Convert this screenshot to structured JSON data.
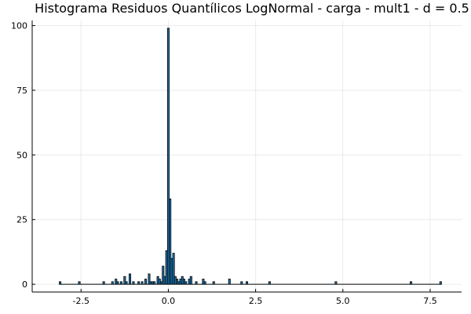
{
  "chart_data": {
    "type": "bar",
    "title": "Histograma Residuos Quantílicos LogNormal - carga - mult1 - d = 0.5",
    "xlabel": "",
    "ylabel": "",
    "xlim": [
      -3.9,
      8.4
    ],
    "ylim": [
      -3,
      102
    ],
    "xticks": [
      -2.5,
      0.0,
      2.5,
      5.0,
      7.5
    ],
    "xtick_labels": [
      "-2.5",
      "0.0",
      "2.5",
      "5.0",
      "7.5"
    ],
    "yticks": [
      0,
      25,
      50,
      75,
      100
    ],
    "ytick_labels": [
      "0",
      "25",
      "50",
      "75",
      "100"
    ],
    "grid": true,
    "legend": "none",
    "bar_color": "#1f77b4",
    "bin_width": 0.05,
    "bins": [
      {
        "x": -3.1,
        "count": 1
      },
      {
        "x": -2.55,
        "count": 1
      },
      {
        "x": -1.85,
        "count": 1
      },
      {
        "x": -1.6,
        "count": 1
      },
      {
        "x": -1.5,
        "count": 2
      },
      {
        "x": -1.45,
        "count": 1
      },
      {
        "x": -1.35,
        "count": 1
      },
      {
        "x": -1.25,
        "count": 3
      },
      {
        "x": -1.2,
        "count": 1
      },
      {
        "x": -1.1,
        "count": 4
      },
      {
        "x": -1.0,
        "count": 1
      },
      {
        "x": -0.85,
        "count": 1
      },
      {
        "x": -0.75,
        "count": 1
      },
      {
        "x": -0.65,
        "count": 2
      },
      {
        "x": -0.55,
        "count": 4
      },
      {
        "x": -0.5,
        "count": 1
      },
      {
        "x": -0.45,
        "count": 1
      },
      {
        "x": -0.4,
        "count": 1
      },
      {
        "x": -0.3,
        "count": 3
      },
      {
        "x": -0.25,
        "count": 2
      },
      {
        "x": -0.2,
        "count": 1
      },
      {
        "x": -0.15,
        "count": 7
      },
      {
        "x": -0.1,
        "count": 3
      },
      {
        "x": -0.05,
        "count": 13
      },
      {
        "x": 0.0,
        "count": 99
      },
      {
        "x": 0.05,
        "count": 33
      },
      {
        "x": 0.1,
        "count": 10
      },
      {
        "x": 0.15,
        "count": 12
      },
      {
        "x": 0.2,
        "count": 3
      },
      {
        "x": 0.25,
        "count": 2
      },
      {
        "x": 0.3,
        "count": 1
      },
      {
        "x": 0.35,
        "count": 2
      },
      {
        "x": 0.4,
        "count": 3
      },
      {
        "x": 0.45,
        "count": 2
      },
      {
        "x": 0.5,
        "count": 1
      },
      {
        "x": 0.6,
        "count": 2
      },
      {
        "x": 0.65,
        "count": 3
      },
      {
        "x": 0.8,
        "count": 1
      },
      {
        "x": 1.0,
        "count": 2
      },
      {
        "x": 1.05,
        "count": 1
      },
      {
        "x": 1.3,
        "count": 1
      },
      {
        "x": 1.75,
        "count": 2
      },
      {
        "x": 2.1,
        "count": 1
      },
      {
        "x": 2.25,
        "count": 1
      },
      {
        "x": 2.9,
        "count": 1
      },
      {
        "x": 4.8,
        "count": 1
      },
      {
        "x": 6.95,
        "count": 1
      },
      {
        "x": 7.8,
        "count": 1
      }
    ]
  }
}
